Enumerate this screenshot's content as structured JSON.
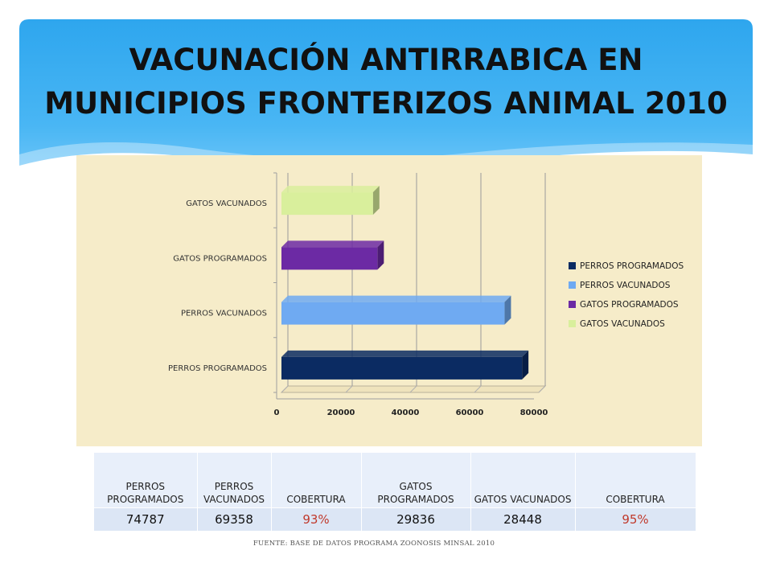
{
  "title_line1": "VACUNACIÓN ANTIRRABICA EN",
  "title_line2": "MUNICIPIOS FRONTERIZOS ANIMAL 2010",
  "colors": {
    "perros_programados": "#0b2b62",
    "perros_vacunados": "#6faaf2",
    "gatos_programados": "#6c2aa4",
    "gatos_vacunados": "#d9ef9c",
    "panel": "#f6ecc9"
  },
  "chart_data": {
    "type": "bar",
    "orientation": "horizontal",
    "categories": [
      "PERROS  PROGRAMADOS",
      "PERROS  VACUNADOS",
      "GATOS PROGRAMADOS",
      "GATOS VACUNADOS"
    ],
    "values": [
      74787,
      69358,
      29836,
      28448
    ],
    "x_ticks": [
      "0",
      "20000",
      "40000",
      "60000",
      "80000"
    ],
    "xlim": [
      0,
      80000
    ],
    "grid": true,
    "legend": {
      "placement": "right",
      "entries": [
        "PERROS  PROGRAMADOS",
        "PERROS  VACUNADOS",
        "GATOS PROGRAMADOS",
        "GATOS VACUNADOS"
      ]
    }
  },
  "table": {
    "headers": [
      "PERROS PROGRAMADOS",
      "PERROS VACUNADOS",
      "COBERTURA",
      "GATOS PROGRAMADOS",
      "GATOS VACUNADOS",
      "COBERTURA"
    ],
    "values": [
      "74787",
      "69358",
      "93%",
      "29836",
      "28448",
      "95%"
    ]
  },
  "source": "FUENTE: BASE DE DATOS PROGRAMA ZOONOSIS MINSAL  2010"
}
